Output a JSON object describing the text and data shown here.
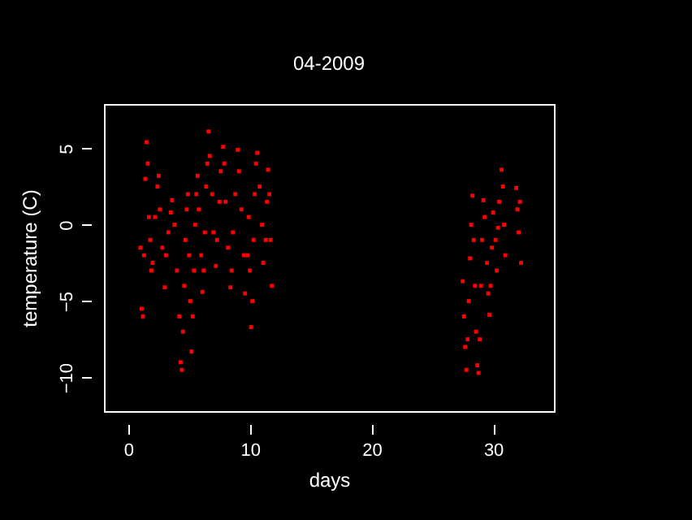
{
  "chart_data": {
    "type": "scatter",
    "title": "04-2009",
    "xlabel": "days",
    "ylabel": "temperature (C)",
    "xlim": [
      -2,
      35
    ],
    "xticks": [
      0,
      10,
      20,
      30
    ],
    "ylim": [
      -12.2,
      7.9
    ],
    "yticks": [
      -10,
      -5,
      0,
      5
    ],
    "grid": false,
    "marker": "square",
    "series": [
      {
        "color": "#ff0000",
        "x": [
          1.0,
          1.1,
          1.2,
          1.3,
          1.4,
          1.5,
          1.6,
          1.7,
          1.8,
          1.9,
          2.0,
          2.2,
          2.4,
          2.5,
          2.6,
          2.8,
          3.0,
          3.1,
          3.3,
          3.5,
          3.6,
          3.8,
          4.0,
          4.2,
          4.3,
          4.4,
          4.5,
          4.6,
          4.7,
          4.8,
          4.9,
          5.0,
          5.1,
          5.2,
          5.3,
          5.4,
          5.5,
          5.6,
          5.7,
          5.8,
          6.0,
          6.1,
          6.2,
          6.3,
          6.4,
          6.5,
          6.6,
          6.7,
          6.9,
          7.0,
          7.2,
          7.3,
          7.5,
          7.6,
          7.8,
          7.9,
          8.0,
          8.2,
          8.4,
          8.5,
          8.6,
          8.8,
          9.0,
          9.1,
          9.3,
          9.5,
          9.6,
          9.8,
          9.9,
          10.0,
          10.1,
          10.2,
          10.3,
          10.4,
          10.5,
          10.6,
          10.8,
          11.0,
          11.1,
          11.3,
          11.4,
          11.5,
          11.6,
          11.7,
          11.8,
          27.5,
          27.6,
          27.7,
          27.8,
          27.9,
          28.0,
          28.1,
          28.2,
          28.3,
          28.4,
          28.5,
          28.6,
          28.7,
          28.8,
          28.9,
          29.0,
          29.1,
          29.2,
          29.3,
          29.5,
          29.6,
          29.7,
          29.8,
          29.9,
          30.0,
          30.2,
          30.3,
          30.4,
          30.5,
          30.7,
          30.8,
          30.9,
          31.0,
          31.9,
          32.0,
          32.1,
          32.2,
          32.3
        ],
        "values": [
          -1.5,
          -5.5,
          -6.0,
          -2.0,
          3.0,
          5.4,
          4.0,
          0.5,
          -1.0,
          -3.0,
          -2.5,
          0.5,
          2.5,
          3.2,
          1.0,
          -1.5,
          -4.1,
          -2.0,
          -0.5,
          0.8,
          1.6,
          0.0,
          -3.0,
          -6.0,
          -9.0,
          -9.5,
          -7.0,
          -4.0,
          -1.0,
          1.0,
          2.0,
          -2.0,
          -5.0,
          -8.3,
          -6.0,
          -3.0,
          0.0,
          2.0,
          3.2,
          1.0,
          -2.0,
          -4.4,
          -3.0,
          -0.5,
          2.5,
          4.0,
          6.1,
          4.5,
          2.0,
          -0.5,
          -2.7,
          -1.0,
          1.5,
          3.5,
          5.1,
          4.0,
          1.5,
          -1.5,
          -4.1,
          -3.0,
          -0.5,
          2.0,
          4.9,
          3.5,
          1.0,
          -2.0,
          -4.5,
          -2.0,
          0.5,
          -3.0,
          -6.7,
          -5.0,
          -1.0,
          2.0,
          4.0,
          4.7,
          2.5,
          0.0,
          -2.5,
          -1.0,
          1.5,
          3.6,
          2.0,
          -1.0,
          -4.0,
          -3.7,
          -6.0,
          -8.0,
          -9.5,
          -7.5,
          -5.0,
          -2.2,
          0.0,
          1.9,
          -1.0,
          -4.0,
          -7.0,
          -9.2,
          -9.7,
          -7.5,
          -4.0,
          -1.0,
          1.6,
          0.5,
          -2.5,
          -4.5,
          -5.9,
          -4.0,
          -1.5,
          0.8,
          -1.0,
          -3.0,
          -0.2,
          1.5,
          3.6,
          2.5,
          0.0,
          -2.0,
          2.4,
          1.0,
          -0.5,
          1.5,
          -2.5
        ]
      }
    ]
  }
}
